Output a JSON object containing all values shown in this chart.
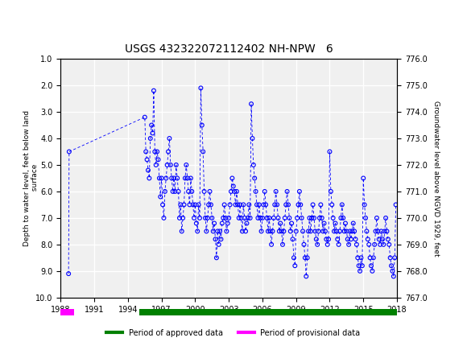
{
  "title": "USGS 432322072112402 NH-NPW   6",
  "ylabel_left": "Depth to water level, feet below land\n surface",
  "ylabel_right": "Groundwater level above NGVD 1929, feet",
  "xlabel": "",
  "ylim_left": [
    10.0,
    1.0
  ],
  "ylim_right": [
    767.0,
    776.0
  ],
  "xlim": [
    1988,
    2018
  ],
  "yticks_left": [
    1.0,
    2.0,
    3.0,
    4.0,
    5.0,
    6.0,
    7.0,
    8.0,
    9.0,
    10.0
  ],
  "yticks_right": [
    767.0,
    768.0,
    769.0,
    770.0,
    771.0,
    772.0,
    773.0,
    774.0,
    775.0,
    776.0
  ],
  "xticks": [
    1988,
    1991,
    1994,
    1997,
    2000,
    2003,
    2006,
    2009,
    2012,
    2015,
    2018
  ],
  "header_color": "#006633",
  "data_color": "#0000FF",
  "approved_color": "#008000",
  "provisional_color": "#FF00FF",
  "background_color": "#ffffff",
  "plot_bg_color": "#f0f0f0",
  "grid_color": "#ffffff",
  "data_points": [
    [
      1988.7,
      9.1
    ],
    [
      1988.75,
      4.5
    ],
    [
      1995.5,
      3.2
    ],
    [
      1995.6,
      4.5
    ],
    [
      1995.7,
      4.8
    ],
    [
      1995.8,
      5.2
    ],
    [
      1995.9,
      5.5
    ],
    [
      1996.0,
      4.0
    ],
    [
      1996.1,
      3.5
    ],
    [
      1996.2,
      3.8
    ],
    [
      1996.3,
      2.2
    ],
    [
      1996.4,
      4.5
    ],
    [
      1996.5,
      5.0
    ],
    [
      1996.6,
      4.5
    ],
    [
      1996.7,
      4.8
    ],
    [
      1996.8,
      5.5
    ],
    [
      1996.9,
      6.2
    ],
    [
      1997.0,
      5.5
    ],
    [
      1997.1,
      6.5
    ],
    [
      1997.2,
      7.0
    ],
    [
      1997.3,
      6.0
    ],
    [
      1997.4,
      5.5
    ],
    [
      1997.5,
      5.0
    ],
    [
      1997.6,
      4.5
    ],
    [
      1997.7,
      4.0
    ],
    [
      1997.8,
      5.0
    ],
    [
      1997.9,
      5.5
    ],
    [
      1998.0,
      6.0
    ],
    [
      1998.1,
      5.5
    ],
    [
      1998.2,
      6.0
    ],
    [
      1998.3,
      5.0
    ],
    [
      1998.4,
      5.5
    ],
    [
      1998.5,
      6.0
    ],
    [
      1998.6,
      7.0
    ],
    [
      1998.7,
      6.5
    ],
    [
      1998.8,
      7.5
    ],
    [
      1998.9,
      7.0
    ],
    [
      1999.0,
      6.5
    ],
    [
      1999.1,
      5.5
    ],
    [
      1999.2,
      5.0
    ],
    [
      1999.3,
      5.5
    ],
    [
      1999.4,
      6.0
    ],
    [
      1999.5,
      6.5
    ],
    [
      1999.6,
      5.5
    ],
    [
      1999.7,
      6.0
    ],
    [
      1999.8,
      6.5
    ],
    [
      1999.9,
      7.0
    ],
    [
      2000.0,
      6.5
    ],
    [
      2000.1,
      7.2
    ],
    [
      2000.2,
      7.5
    ],
    [
      2000.3,
      6.5
    ],
    [
      2000.4,
      7.0
    ],
    [
      2000.5,
      2.1
    ],
    [
      2000.6,
      3.5
    ],
    [
      2000.7,
      4.5
    ],
    [
      2000.8,
      6.0
    ],
    [
      2000.9,
      7.0
    ],
    [
      2001.0,
      7.5
    ],
    [
      2001.1,
      7.0
    ],
    [
      2001.2,
      6.5
    ],
    [
      2001.3,
      6.0
    ],
    [
      2001.4,
      6.5
    ],
    [
      2001.5,
      7.0
    ],
    [
      2001.6,
      7.5
    ],
    [
      2001.7,
      7.2
    ],
    [
      2001.8,
      7.8
    ],
    [
      2001.9,
      8.5
    ],
    [
      2002.0,
      7.5
    ],
    [
      2002.1,
      8.0
    ],
    [
      2002.2,
      7.5
    ],
    [
      2002.3,
      7.8
    ],
    [
      2002.4,
      7.2
    ],
    [
      2002.5,
      7.0
    ],
    [
      2002.6,
      6.5
    ],
    [
      2002.7,
      7.0
    ],
    [
      2002.8,
      7.5
    ],
    [
      2002.9,
      7.2
    ],
    [
      2003.0,
      7.0
    ],
    [
      2003.1,
      6.5
    ],
    [
      2003.2,
      6.0
    ],
    [
      2003.3,
      5.5
    ],
    [
      2003.4,
      5.8
    ],
    [
      2003.5,
      6.0
    ],
    [
      2003.6,
      6.5
    ],
    [
      2003.7,
      6.0
    ],
    [
      2003.8,
      6.5
    ],
    [
      2003.9,
      7.0
    ],
    [
      2004.0,
      6.5
    ],
    [
      2004.1,
      7.0
    ],
    [
      2004.2,
      7.5
    ],
    [
      2004.3,
      6.5
    ],
    [
      2004.4,
      7.0
    ],
    [
      2004.5,
      7.5
    ],
    [
      2004.6,
      7.2
    ],
    [
      2004.7,
      7.0
    ],
    [
      2004.8,
      6.5
    ],
    [
      2004.9,
      7.0
    ],
    [
      2005.0,
      2.7
    ],
    [
      2005.1,
      4.0
    ],
    [
      2005.2,
      5.0
    ],
    [
      2005.3,
      5.5
    ],
    [
      2005.4,
      6.0
    ],
    [
      2005.5,
      6.5
    ],
    [
      2005.6,
      7.0
    ],
    [
      2005.7,
      6.5
    ],
    [
      2005.8,
      7.0
    ],
    [
      2005.9,
      7.5
    ],
    [
      2006.0,
      7.0
    ],
    [
      2006.1,
      6.5
    ],
    [
      2006.2,
      6.0
    ],
    [
      2006.3,
      6.5
    ],
    [
      2006.4,
      7.0
    ],
    [
      2006.5,
      7.5
    ],
    [
      2006.6,
      7.0
    ],
    [
      2006.7,
      7.5
    ],
    [
      2006.8,
      8.0
    ],
    [
      2006.9,
      7.5
    ],
    [
      2007.0,
      7.0
    ],
    [
      2007.1,
      6.5
    ],
    [
      2007.2,
      6.0
    ],
    [
      2007.3,
      6.5
    ],
    [
      2007.4,
      7.0
    ],
    [
      2007.5,
      7.5
    ],
    [
      2007.6,
      7.2
    ],
    [
      2007.7,
      7.5
    ],
    [
      2007.8,
      8.0
    ],
    [
      2007.9,
      7.5
    ],
    [
      2008.0,
      7.0
    ],
    [
      2008.1,
      6.5
    ],
    [
      2008.2,
      6.0
    ],
    [
      2008.3,
      6.5
    ],
    [
      2008.4,
      7.0
    ],
    [
      2008.5,
      7.5
    ],
    [
      2008.6,
      7.2
    ],
    [
      2008.7,
      7.8
    ],
    [
      2008.8,
      8.5
    ],
    [
      2008.9,
      8.8
    ],
    [
      2009.0,
      7.5
    ],
    [
      2009.1,
      7.0
    ],
    [
      2009.2,
      6.5
    ],
    [
      2009.3,
      6.0
    ],
    [
      2009.4,
      6.5
    ],
    [
      2009.5,
      7.0
    ],
    [
      2009.6,
      7.5
    ],
    [
      2009.7,
      8.0
    ],
    [
      2009.8,
      8.5
    ],
    [
      2009.9,
      9.2
    ],
    [
      2010.0,
      8.5
    ],
    [
      2010.1,
      7.5
    ],
    [
      2010.2,
      7.0
    ],
    [
      2010.3,
      7.5
    ],
    [
      2010.4,
      7.0
    ],
    [
      2010.5,
      6.5
    ],
    [
      2010.6,
      7.0
    ],
    [
      2010.7,
      7.5
    ],
    [
      2010.8,
      7.8
    ],
    [
      2010.9,
      8.0
    ],
    [
      2011.0,
      7.5
    ],
    [
      2011.1,
      7.0
    ],
    [
      2011.2,
      6.5
    ],
    [
      2011.3,
      7.0
    ],
    [
      2011.4,
      7.5
    ],
    [
      2011.5,
      7.2
    ],
    [
      2011.6,
      7.5
    ],
    [
      2011.7,
      7.8
    ],
    [
      2011.8,
      8.0
    ],
    [
      2011.9,
      7.8
    ],
    [
      2012.0,
      4.5
    ],
    [
      2012.1,
      6.0
    ],
    [
      2012.2,
      6.5
    ],
    [
      2012.3,
      7.0
    ],
    [
      2012.4,
      7.5
    ],
    [
      2012.5,
      7.2
    ],
    [
      2012.6,
      7.5
    ],
    [
      2012.7,
      7.8
    ],
    [
      2012.8,
      8.0
    ],
    [
      2012.9,
      7.5
    ],
    [
      2013.0,
      7.0
    ],
    [
      2013.1,
      6.5
    ],
    [
      2013.2,
      7.0
    ],
    [
      2013.3,
      7.5
    ],
    [
      2013.4,
      7.2
    ],
    [
      2013.5,
      7.5
    ],
    [
      2013.6,
      7.8
    ],
    [
      2013.7,
      8.0
    ],
    [
      2013.8,
      7.5
    ],
    [
      2013.9,
      7.8
    ],
    [
      2014.0,
      7.5
    ],
    [
      2014.1,
      7.2
    ],
    [
      2014.2,
      7.5
    ],
    [
      2014.3,
      7.8
    ],
    [
      2014.4,
      8.0
    ],
    [
      2014.5,
      8.5
    ],
    [
      2014.6,
      8.8
    ],
    [
      2014.7,
      9.0
    ],
    [
      2014.8,
      8.5
    ],
    [
      2014.9,
      8.8
    ],
    [
      2015.0,
      5.5
    ],
    [
      2015.1,
      6.5
    ],
    [
      2015.2,
      7.0
    ],
    [
      2015.3,
      7.5
    ],
    [
      2015.4,
      7.8
    ],
    [
      2015.5,
      8.0
    ],
    [
      2015.6,
      8.5
    ],
    [
      2015.7,
      8.8
    ],
    [
      2015.8,
      9.0
    ],
    [
      2015.9,
      8.5
    ],
    [
      2016.0,
      8.0
    ],
    [
      2016.1,
      7.5
    ],
    [
      2016.2,
      7.0
    ],
    [
      2016.3,
      7.5
    ],
    [
      2016.4,
      7.8
    ],
    [
      2016.5,
      8.0
    ],
    [
      2016.6,
      7.5
    ],
    [
      2016.7,
      7.8
    ],
    [
      2016.8,
      8.0
    ],
    [
      2016.9,
      7.5
    ],
    [
      2017.0,
      7.0
    ],
    [
      2017.1,
      7.5
    ],
    [
      2017.2,
      7.8
    ],
    [
      2017.3,
      8.0
    ],
    [
      2017.4,
      8.5
    ],
    [
      2017.5,
      8.8
    ],
    [
      2017.6,
      9.0
    ],
    [
      2017.7,
      9.2
    ],
    [
      2017.8,
      8.5
    ],
    [
      2017.9,
      6.5
    ]
  ]
}
